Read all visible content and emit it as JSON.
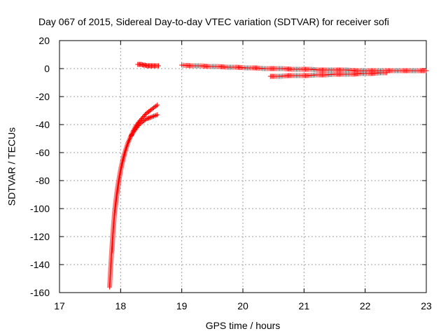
{
  "chart_data": {
    "type": "scatter",
    "title": "Day 067 of 2015, Sidereal Day-to-day VTEC variation (SDTVAR) for receiver sofi",
    "xlabel": "GPS time / hours",
    "ylabel": "SDTVAR / TECUs",
    "xlim": [
      17,
      23
    ],
    "ylim": [
      -160,
      20
    ],
    "xticks": [
      "17",
      "18",
      "19",
      "20",
      "21",
      "22",
      "23"
    ],
    "yticks": [
      "20",
      "0",
      "-20",
      "-40",
      "-60",
      "-80",
      "-100",
      "-120",
      "-140",
      "-160"
    ],
    "grid": true,
    "marker": "+",
    "color": "#ff0000",
    "series": [
      {
        "x": [
          17.82,
          17.83,
          17.84,
          17.85,
          17.86,
          17.87,
          17.88,
          17.89,
          17.9,
          17.92,
          17.94,
          17.96,
          17.98,
          18.0,
          18.03,
          18.06,
          18.09,
          18.12,
          18.16,
          18.2,
          18.25,
          18.3,
          18.36,
          18.42,
          18.48,
          18.54,
          18.6
        ],
        "y": [
          -156,
          -148,
          -140,
          -133,
          -126,
          -120,
          -114,
          -109,
          -104,
          -97,
          -90,
          -84,
          -78,
          -73,
          -67,
          -62,
          -57,
          -53,
          -49,
          -45,
          -41,
          -38,
          -35,
          -32,
          -30,
          -28,
          -26
        ]
      },
      {
        "x": [
          17.86,
          17.87,
          17.88,
          17.89,
          17.9,
          17.92,
          17.94,
          17.96,
          17.98,
          18.0,
          18.03,
          18.06,
          18.09,
          18.12,
          18.16,
          18.2,
          18.25,
          18.3,
          18.36,
          18.42,
          18.48,
          18.54,
          18.6
        ],
        "y": [
          -130,
          -122,
          -115,
          -109,
          -103,
          -95,
          -88,
          -82,
          -77,
          -72,
          -66,
          -61,
          -57,
          -53,
          -49,
          -46,
          -43,
          -40,
          -38,
          -36,
          -35,
          -34,
          -33
        ]
      },
      {
        "x": [
          18.28,
          18.31,
          18.34,
          18.37,
          18.4,
          18.43,
          18.46,
          18.49,
          18.52,
          18.55,
          18.58,
          18.62
        ],
        "y": [
          3,
          3,
          3,
          2.5,
          2.5,
          2,
          2,
          2,
          2,
          2,
          2,
          2
        ]
      },
      {
        "x": [
          19.0,
          19.15,
          19.3,
          19.45,
          19.6,
          19.75,
          19.9,
          20.05,
          20.2,
          20.35,
          20.5,
          20.65,
          20.8,
          20.95,
          21.1,
          21.25,
          21.4,
          21.55,
          21.7,
          21.85,
          22.0,
          22.15,
          22.3,
          22.45,
          22.6,
          22.75,
          22.9,
          23.0
        ],
        "y": [
          2.5,
          2,
          2,
          1.5,
          1.5,
          1,
          1,
          0.5,
          0.5,
          0,
          0,
          0,
          -0.5,
          -0.5,
          -0.5,
          -1,
          -1,
          -1,
          -1,
          -1.5,
          -1.5,
          -1.5,
          -1.5,
          -1.5,
          -1.5,
          -1.5,
          -1.5,
          -1.5
        ]
      },
      {
        "x": [
          20.45,
          20.6,
          20.75,
          20.9,
          21.05,
          21.2,
          21.35,
          21.5,
          21.65,
          21.8,
          21.95,
          22.1,
          22.25,
          22.35
        ],
        "y": [
          -5.5,
          -5.5,
          -5,
          -5,
          -5,
          -4.5,
          -4.5,
          -4,
          -4,
          -4,
          -3.5,
          -3.5,
          -3,
          -3
        ]
      }
    ]
  }
}
